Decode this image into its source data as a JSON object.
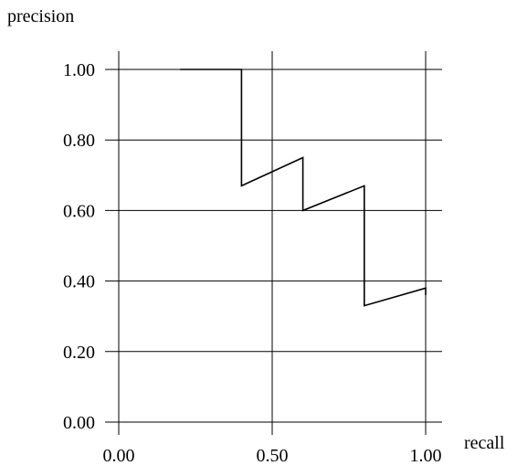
{
  "chart_data": {
    "type": "line",
    "xlabel": "recall",
    "ylabel": "precision",
    "xlim": [
      0,
      1
    ],
    "ylim": [
      0,
      1
    ],
    "x_ticks": [
      0,
      0.5,
      1
    ],
    "x_tick_labels": [
      "0.00",
      "0.50",
      "1.00"
    ],
    "y_ticks": [
      0,
      0.2,
      0.4,
      0.6,
      0.8,
      1
    ],
    "y_tick_labels": [
      "0.00",
      "0.20",
      "0.40",
      "0.60",
      "0.80",
      "1.00"
    ],
    "grid": true,
    "series": [
      {
        "x": [
          0.2,
          0.4,
          0.4,
          0.6,
          0.6,
          0.8,
          0.8,
          1.0,
          1.0
        ],
        "y": [
          1.0,
          1.0,
          0.67,
          0.75,
          0.6,
          0.67,
          0.33,
          0.38,
          0.36
        ]
      }
    ]
  }
}
